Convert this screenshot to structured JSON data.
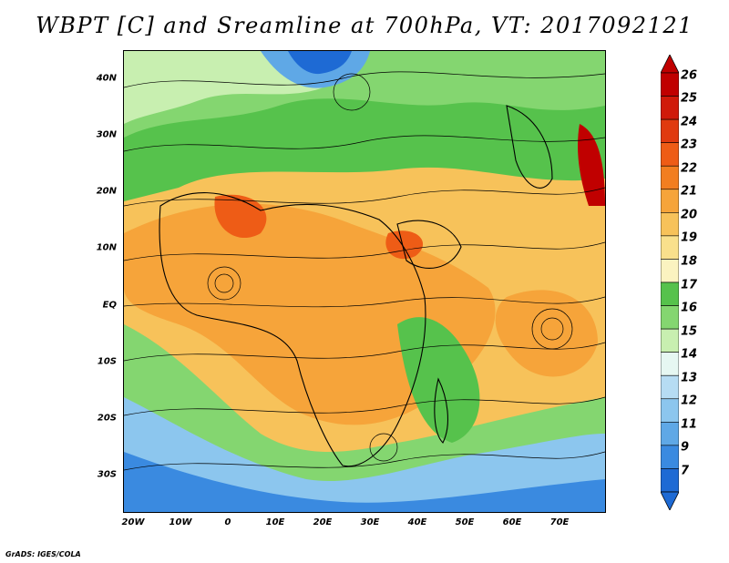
{
  "title": "WBPT [C] and Sreamline at 700hPa, VT: 2017092121",
  "footer": "GrADS: IGES/COLA",
  "map": {
    "lat_labels": [
      "40N",
      "30N",
      "20N",
      "10N",
      "EQ",
      "10S",
      "20S",
      "30S"
    ],
    "lon_labels": [
      "20W",
      "10W",
      "0",
      "10E",
      "20E",
      "30E",
      "40E",
      "50E",
      "60E",
      "70E"
    ],
    "lat_range": [
      -36,
      45
    ],
    "lon_range": [
      -22,
      79
    ]
  },
  "colorbar": {
    "labels": [
      "26",
      "25",
      "24",
      "23",
      "22",
      "21",
      "20",
      "19",
      "18",
      "17",
      "16",
      "15",
      "14",
      "13",
      "12",
      "11",
      "9",
      "7"
    ],
    "colors": [
      "#c00000",
      "#d01a0a",
      "#e03a0f",
      "#ee5c16",
      "#f27e20",
      "#f6a43a",
      "#f7c25a",
      "#f9e08c",
      "#fbf3c0",
      "#56c24c",
      "#84d670",
      "#c8efb0",
      "#e6f7f2",
      "#b6dcf3",
      "#8cc6ee",
      "#5fa8e6",
      "#3a8ae0",
      "#1e6ad4"
    ]
  }
}
